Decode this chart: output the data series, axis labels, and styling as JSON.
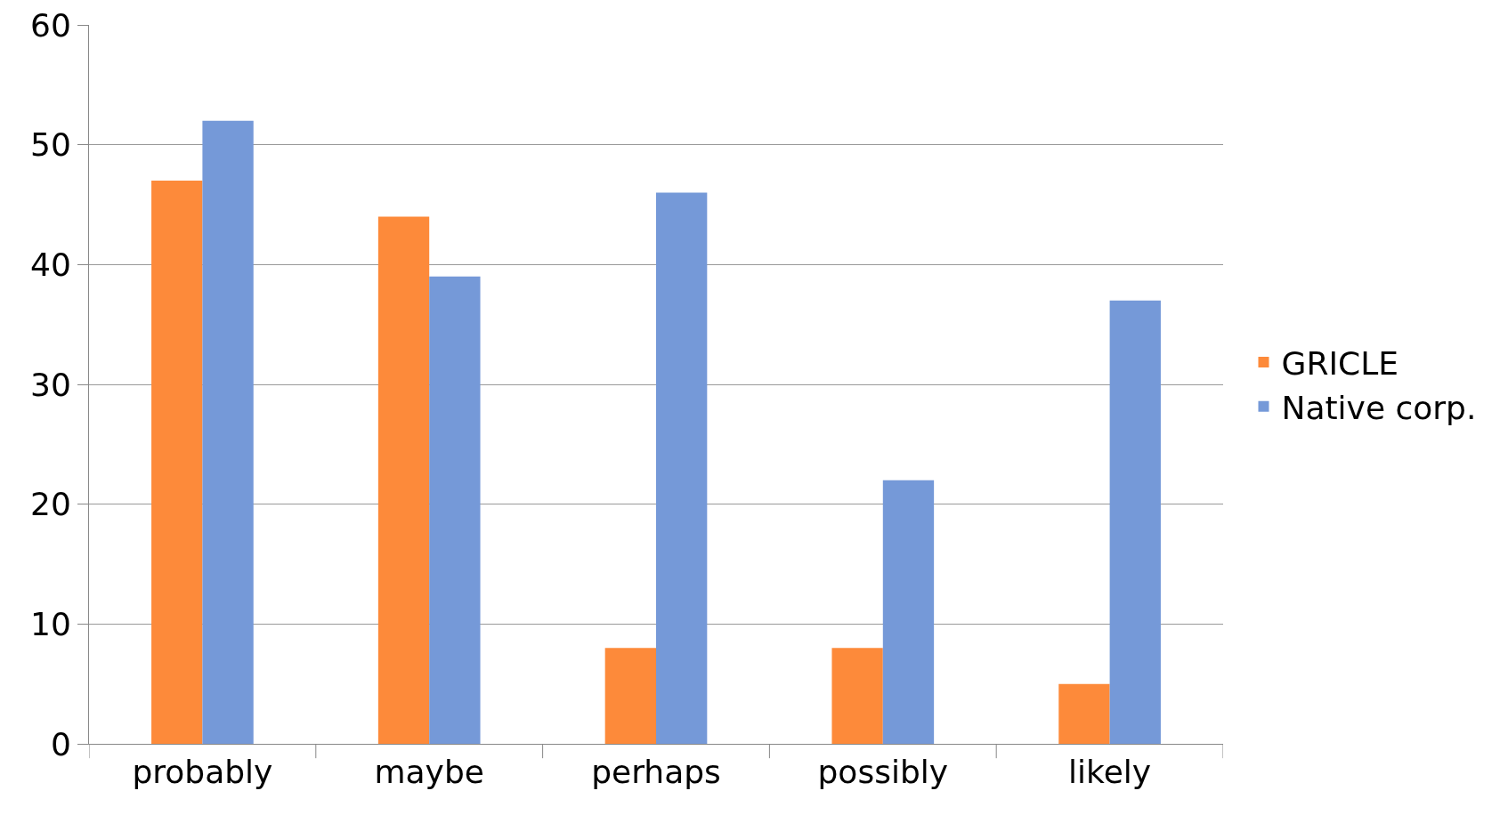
{
  "chart_data": {
    "type": "bar",
    "categories": [
      "probably",
      "maybe",
      "perhaps",
      "possibly",
      "likely"
    ],
    "series": [
      {
        "name": "GRICLE",
        "color": "#fd8a3a",
        "values": [
          47,
          44,
          8,
          8,
          5
        ]
      },
      {
        "name": "Native corp.",
        "color": "#7599d8",
        "values": [
          52,
          39,
          46,
          22,
          37
        ]
      }
    ],
    "ylim": [
      0,
      60
    ],
    "yticks": [
      0,
      10,
      20,
      30,
      40,
      50,
      60
    ],
    "grid": "y",
    "legend": "right"
  }
}
